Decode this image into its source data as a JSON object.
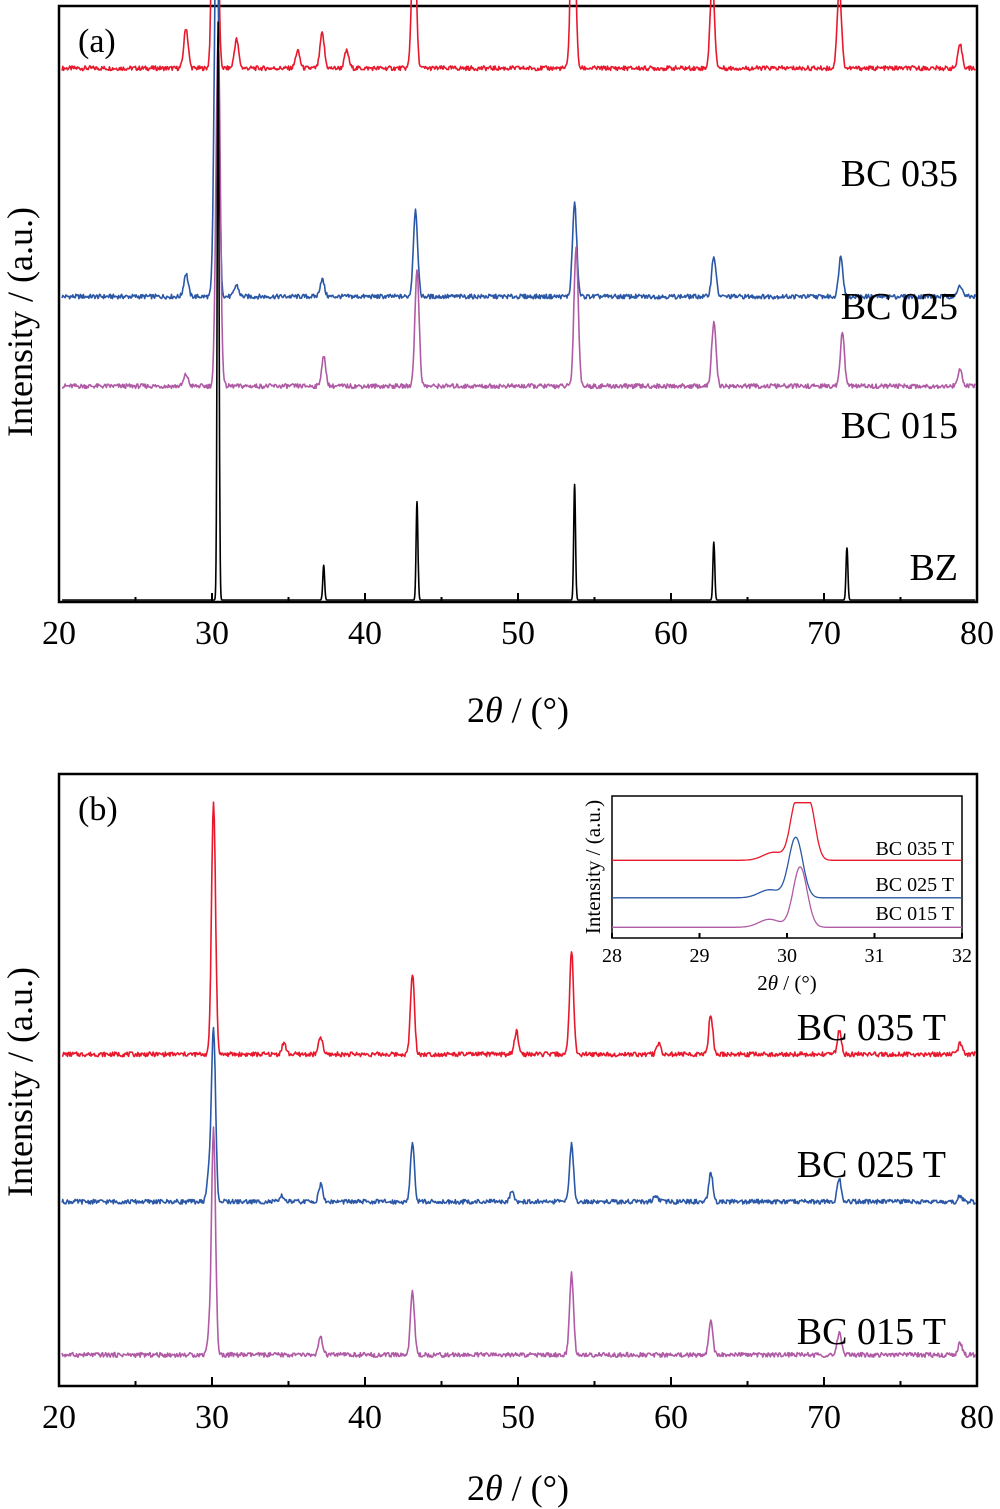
{
  "colors": {
    "red": "#e8192c",
    "blue": "#2b58a6",
    "purple": "#b05ba5",
    "black": "#000000"
  },
  "chart_data": [
    {
      "type": "line",
      "panel_label": "(a)",
      "xlabel_prefix": "2",
      "xlabel_theta": "θ",
      "xlabel_suffix": " / (°)",
      "ylabel": "Intensity / (a.u.)",
      "xlim": [
        20,
        80
      ],
      "x_ticks": [
        "20",
        "30",
        "40",
        "50",
        "60",
        "70",
        "80"
      ],
      "series": [
        {
          "name": "BC 035",
          "color": "red",
          "baseline": 0.92,
          "peaks": [
            [
              28.3,
              0.07
            ],
            [
              30.2,
              1.0
            ],
            [
              31.6,
              0.05
            ],
            [
              35.6,
              0.03
            ],
            [
              37.2,
              0.06
            ],
            [
              38.8,
              0.03
            ],
            [
              43.2,
              0.27
            ],
            [
              53.6,
              0.4
            ],
            [
              62.7,
              0.15
            ],
            [
              71.0,
              0.14
            ],
            [
              78.9,
              0.04
            ]
          ]
        },
        {
          "name": "BC 025",
          "color": "blue",
          "baseline": 0.525,
          "peaks": [
            [
              28.3,
              0.04
            ],
            [
              30.3,
              0.72
            ],
            [
              31.6,
              0.02
            ],
            [
              37.2,
              0.03
            ],
            [
              43.3,
              0.15
            ],
            [
              53.7,
              0.16
            ],
            [
              62.8,
              0.07
            ],
            [
              71.1,
              0.07
            ],
            [
              78.9,
              0.02
            ]
          ]
        },
        {
          "name": "BC 015",
          "color": "purple",
          "baseline": 0.37,
          "peaks": [
            [
              28.3,
              0.02
            ],
            [
              30.4,
              0.61
            ],
            [
              37.3,
              0.05
            ],
            [
              43.4,
              0.2
            ],
            [
              53.8,
              0.24
            ],
            [
              62.8,
              0.11
            ],
            [
              71.2,
              0.09
            ],
            [
              78.9,
              0.03
            ]
          ]
        },
        {
          "name": "BZ",
          "color": "black",
          "baseline": 0.0,
          "peaks": [
            [
              30.4,
              1.0
            ],
            [
              37.3,
              0.06
            ],
            [
              43.4,
              0.17
            ],
            [
              53.7,
              0.2
            ],
            [
              62.8,
              0.1
            ],
            [
              71.5,
              0.09
            ]
          ]
        }
      ]
    },
    {
      "type": "line",
      "panel_label": "(b)",
      "xlabel_prefix": "2",
      "xlabel_theta": "θ",
      "xlabel_suffix": " / (°)",
      "ylabel": "Intensity / (a.u.)",
      "xlim": [
        20,
        80
      ],
      "x_ticks": [
        "20",
        "30",
        "40",
        "50",
        "60",
        "70",
        "80"
      ],
      "series": [
        {
          "name": "BC 035 T",
          "color": "red",
          "baseline": 0.56,
          "peaks": [
            [
              30.1,
              0.44
            ],
            [
              34.7,
              0.02
            ],
            [
              37.1,
              0.03
            ],
            [
              43.1,
              0.14
            ],
            [
              49.9,
              0.04
            ],
            [
              53.5,
              0.18
            ],
            [
              59.2,
              0.02
            ],
            [
              62.6,
              0.07
            ],
            [
              71.0,
              0.04
            ],
            [
              78.9,
              0.02
            ]
          ]
        },
        {
          "name": "BC 025 T",
          "color": "blue",
          "baseline": 0.305,
          "peaks": [
            [
              29.8,
              0.05
            ],
            [
              30.1,
              0.3
            ],
            [
              34.6,
              0.01
            ],
            [
              37.1,
              0.03
            ],
            [
              43.1,
              0.1
            ],
            [
              49.6,
              0.02
            ],
            [
              53.5,
              0.1
            ],
            [
              59.0,
              0.01
            ],
            [
              62.6,
              0.05
            ],
            [
              71.0,
              0.04
            ],
            [
              78.9,
              0.01
            ]
          ]
        },
        {
          "name": "BC 015 T",
          "color": "purple",
          "baseline": 0.04,
          "peaks": [
            [
              29.8,
              0.03
            ],
            [
              30.1,
              0.39
            ],
            [
              37.1,
              0.03
            ],
            [
              43.1,
              0.11
            ],
            [
              53.5,
              0.14
            ],
            [
              62.6,
              0.06
            ],
            [
              71.0,
              0.04
            ],
            [
              78.9,
              0.02
            ]
          ]
        }
      ],
      "inset": {
        "type": "line",
        "xlabel_prefix": "2",
        "xlabel_theta": "θ",
        "xlabel_suffix": " / (°)",
        "ylabel": "Intensity / (a.u.)",
        "xlim": [
          28,
          32
        ],
        "x_ticks": [
          "28",
          "29",
          "30",
          "31",
          "32"
        ],
        "series": [
          {
            "name": "BC 035 T",
            "color": "red",
            "baseline": 0.55,
            "shoulder": 29.85,
            "peak_x": 30.18,
            "peak_h": 0.45,
            "flat": true
          },
          {
            "name": "BC 025 T",
            "color": "blue",
            "baseline": 0.27,
            "shoulder": 29.8,
            "peak_x": 30.1,
            "peak_h": 0.45,
            "flat": false
          },
          {
            "name": "BC 015 T",
            "color": "purple",
            "baseline": 0.05,
            "shoulder": 29.8,
            "peak_x": 30.15,
            "peak_h": 0.45,
            "flat": false
          }
        ]
      }
    }
  ]
}
